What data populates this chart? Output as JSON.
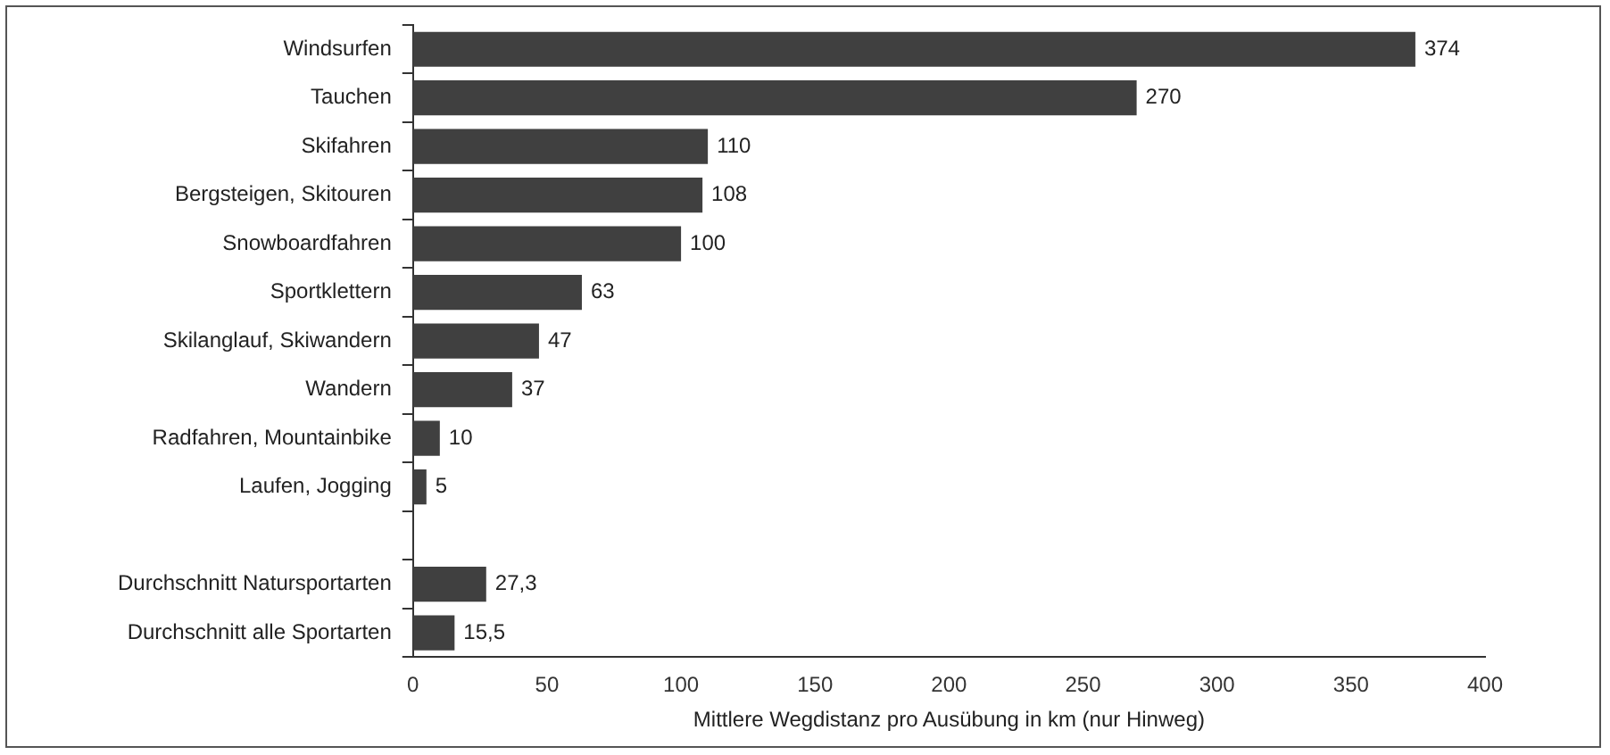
{
  "chart_data": {
    "type": "bar",
    "orientation": "horizontal",
    "xlabel": "Mittlere Wegdistanz pro Ausübung in km (nur Hinweg)",
    "categories": [
      "Windsurfen",
      "Tauchen",
      "Skifahren",
      "Bergsteigen, Skitouren",
      "Snowboardfahren",
      "Sportklettern",
      "Skilanglauf, Skiwandern",
      "Wandern",
      "Radfahren, Mountainbike",
      "Laufen, Jogging",
      null,
      "Durchschnitt Natursportarten",
      "Durchschnitt alle Sportarten"
    ],
    "values": [
      374,
      270,
      110,
      108,
      100,
      63,
      47,
      37,
      10,
      5,
      null,
      27.3,
      15.5
    ],
    "value_labels": [
      "374",
      "270",
      "110",
      "108",
      "100",
      "63",
      "47",
      "37",
      "10",
      "5",
      null,
      "27,3",
      "15,5"
    ],
    "color": "#404040",
    "xlim": [
      0,
      400
    ],
    "xticks": [
      0,
      50,
      100,
      150,
      200,
      250,
      300,
      350,
      400
    ],
    "grid": false,
    "legend": false
  }
}
